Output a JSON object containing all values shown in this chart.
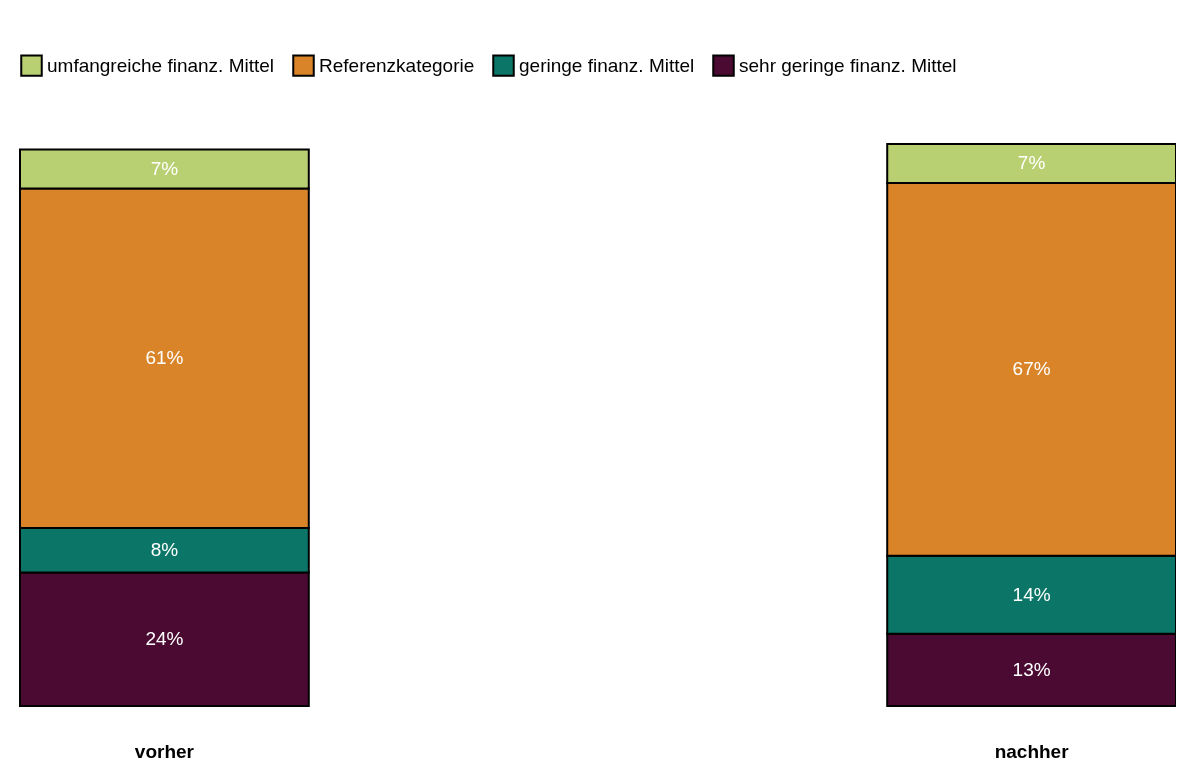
{
  "chart_data": {
    "type": "bar",
    "stacked": true,
    "data_labels": false,
    "legend": "top",
    "categories": [
      "vorher",
      "nachher"
    ],
    "series": [
      {
        "name": "sehr geringe finanz. Mittel",
        "color": "#4a0a31",
        "values": [
          24,
          13
        ],
        "value_labels": [
          "24%",
          "13%"
        ]
      },
      {
        "name": "geringe finanz. Mittel",
        "color": "#0b7667",
        "values": [
          8,
          14
        ],
        "value_labels": [
          "8%",
          "14%"
        ]
      },
      {
        "name": "Referenzkategorie",
        "color": "#d98428",
        "values": [
          61,
          67
        ],
        "value_labels": [
          "61%",
          "67%"
        ]
      },
      {
        "name": "umfangreiche finanz. Mittel",
        "color": "#b8cf72",
        "values": [
          7,
          7
        ],
        "value_labels": [
          "7%",
          "7%"
        ]
      }
    ]
  }
}
